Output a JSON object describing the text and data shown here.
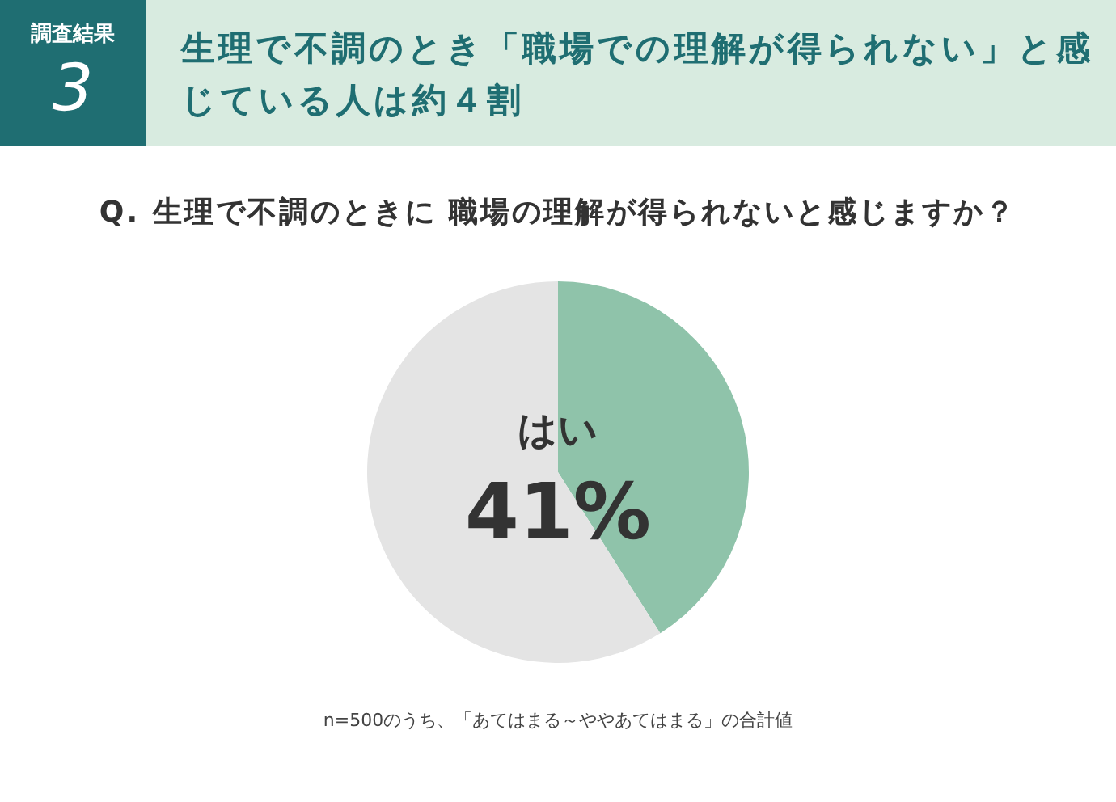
{
  "chart_data": {
    "type": "pie",
    "title": "生理で不調のとき「職場での理解が得られない」と感じている人は約４割",
    "subtitle": "Q. 生理で不調のときに 職場の理解が得られないと感じますか？",
    "categories": [
      "はい",
      null
    ],
    "values": [
      41,
      59
    ],
    "colors": [
      "#8fc3aa",
      "#e4e4e4"
    ],
    "value_labels": [
      "41%",
      null
    ],
    "annotations": [
      "調査結果",
      "3",
      "n=500のうち、「あてはまる～ややあてはまる」の合計値"
    ]
  }
}
